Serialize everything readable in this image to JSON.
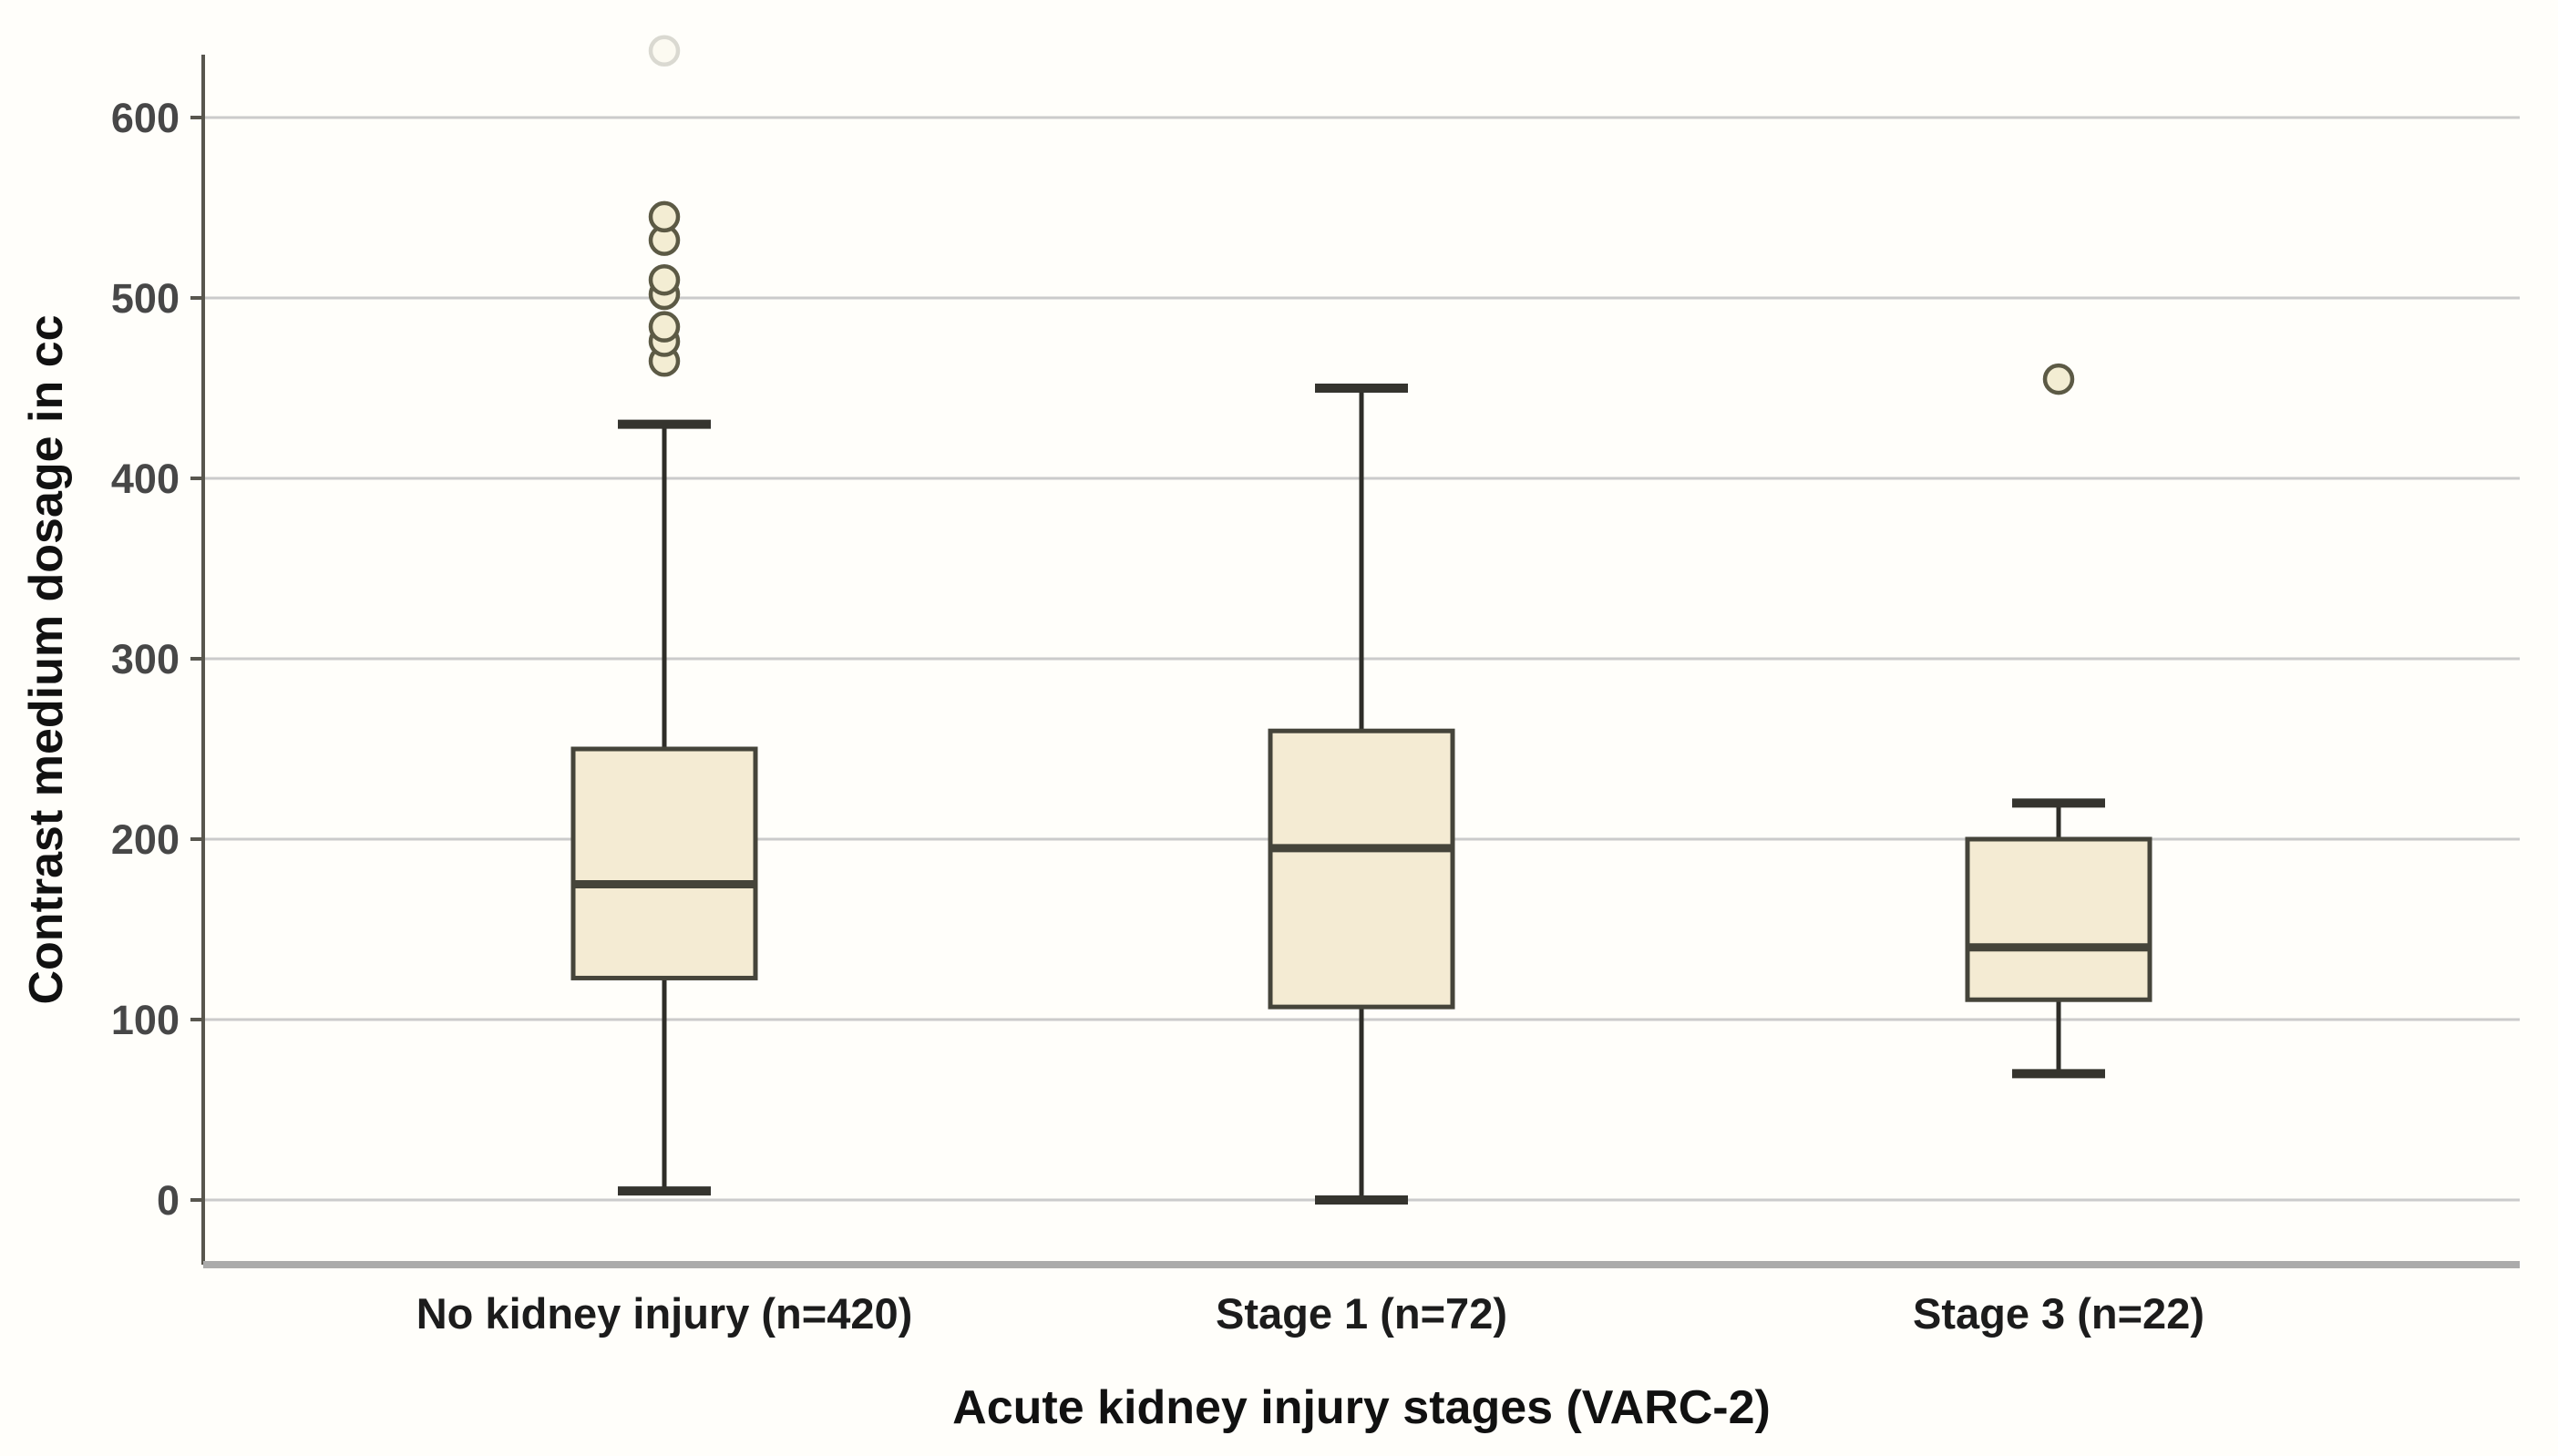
{
  "chart_data": {
    "type": "boxplot",
    "title": "",
    "xlabel": "Acute kidney injury stages (VARC-2)",
    "ylabel": "Contrast medium dosage in cc",
    "yticks": [
      0,
      100,
      200,
      300,
      400,
      500,
      600
    ],
    "ylim": [
      0,
      600
    ],
    "grid": "horizontal",
    "legend": "none",
    "categories": [
      "No kidney injury (n=420)",
      "Stage 1 (n=72)",
      "Stage 3 (n=22)"
    ],
    "boxes": [
      {
        "label": "No kidney injury (n=420)",
        "whisker_low": 5,
        "q1": 123,
        "median": 175,
        "q3": 250,
        "whisker_high": 430,
        "outliers": [
          465,
          476,
          484,
          502,
          510,
          532,
          545
        ],
        "faded_outliers": [
          637
        ]
      },
      {
        "label": "Stage 1 (n=72)",
        "whisker_low": 0,
        "q1": 107,
        "median": 195,
        "q3": 260,
        "whisker_high": 450,
        "outliers": [],
        "faded_outliers": []
      },
      {
        "label": "Stage 3 (n=22)",
        "whisker_low": 70,
        "q1": 111,
        "median": 140,
        "q3": 200,
        "whisker_high": 220,
        "outliers": [
          455
        ],
        "faded_outliers": []
      }
    ],
    "colors": {
      "background": "#fffefa",
      "box_fill": "#f4ebd3",
      "box_stroke": "#45443a",
      "median_stroke": "#45443a",
      "whisker_stroke": "#2e2d28",
      "cap_stroke": "#35342e",
      "outlier_fill": "#f3edd3",
      "outlier_stroke": "#5c5a45",
      "gridline": "#cbcbcb",
      "axis_line": "#58564e",
      "bottom_frame": "#ababab",
      "tick_text": "#474747",
      "category_text": "#1c1c1c",
      "title_text": "#111111"
    }
  }
}
